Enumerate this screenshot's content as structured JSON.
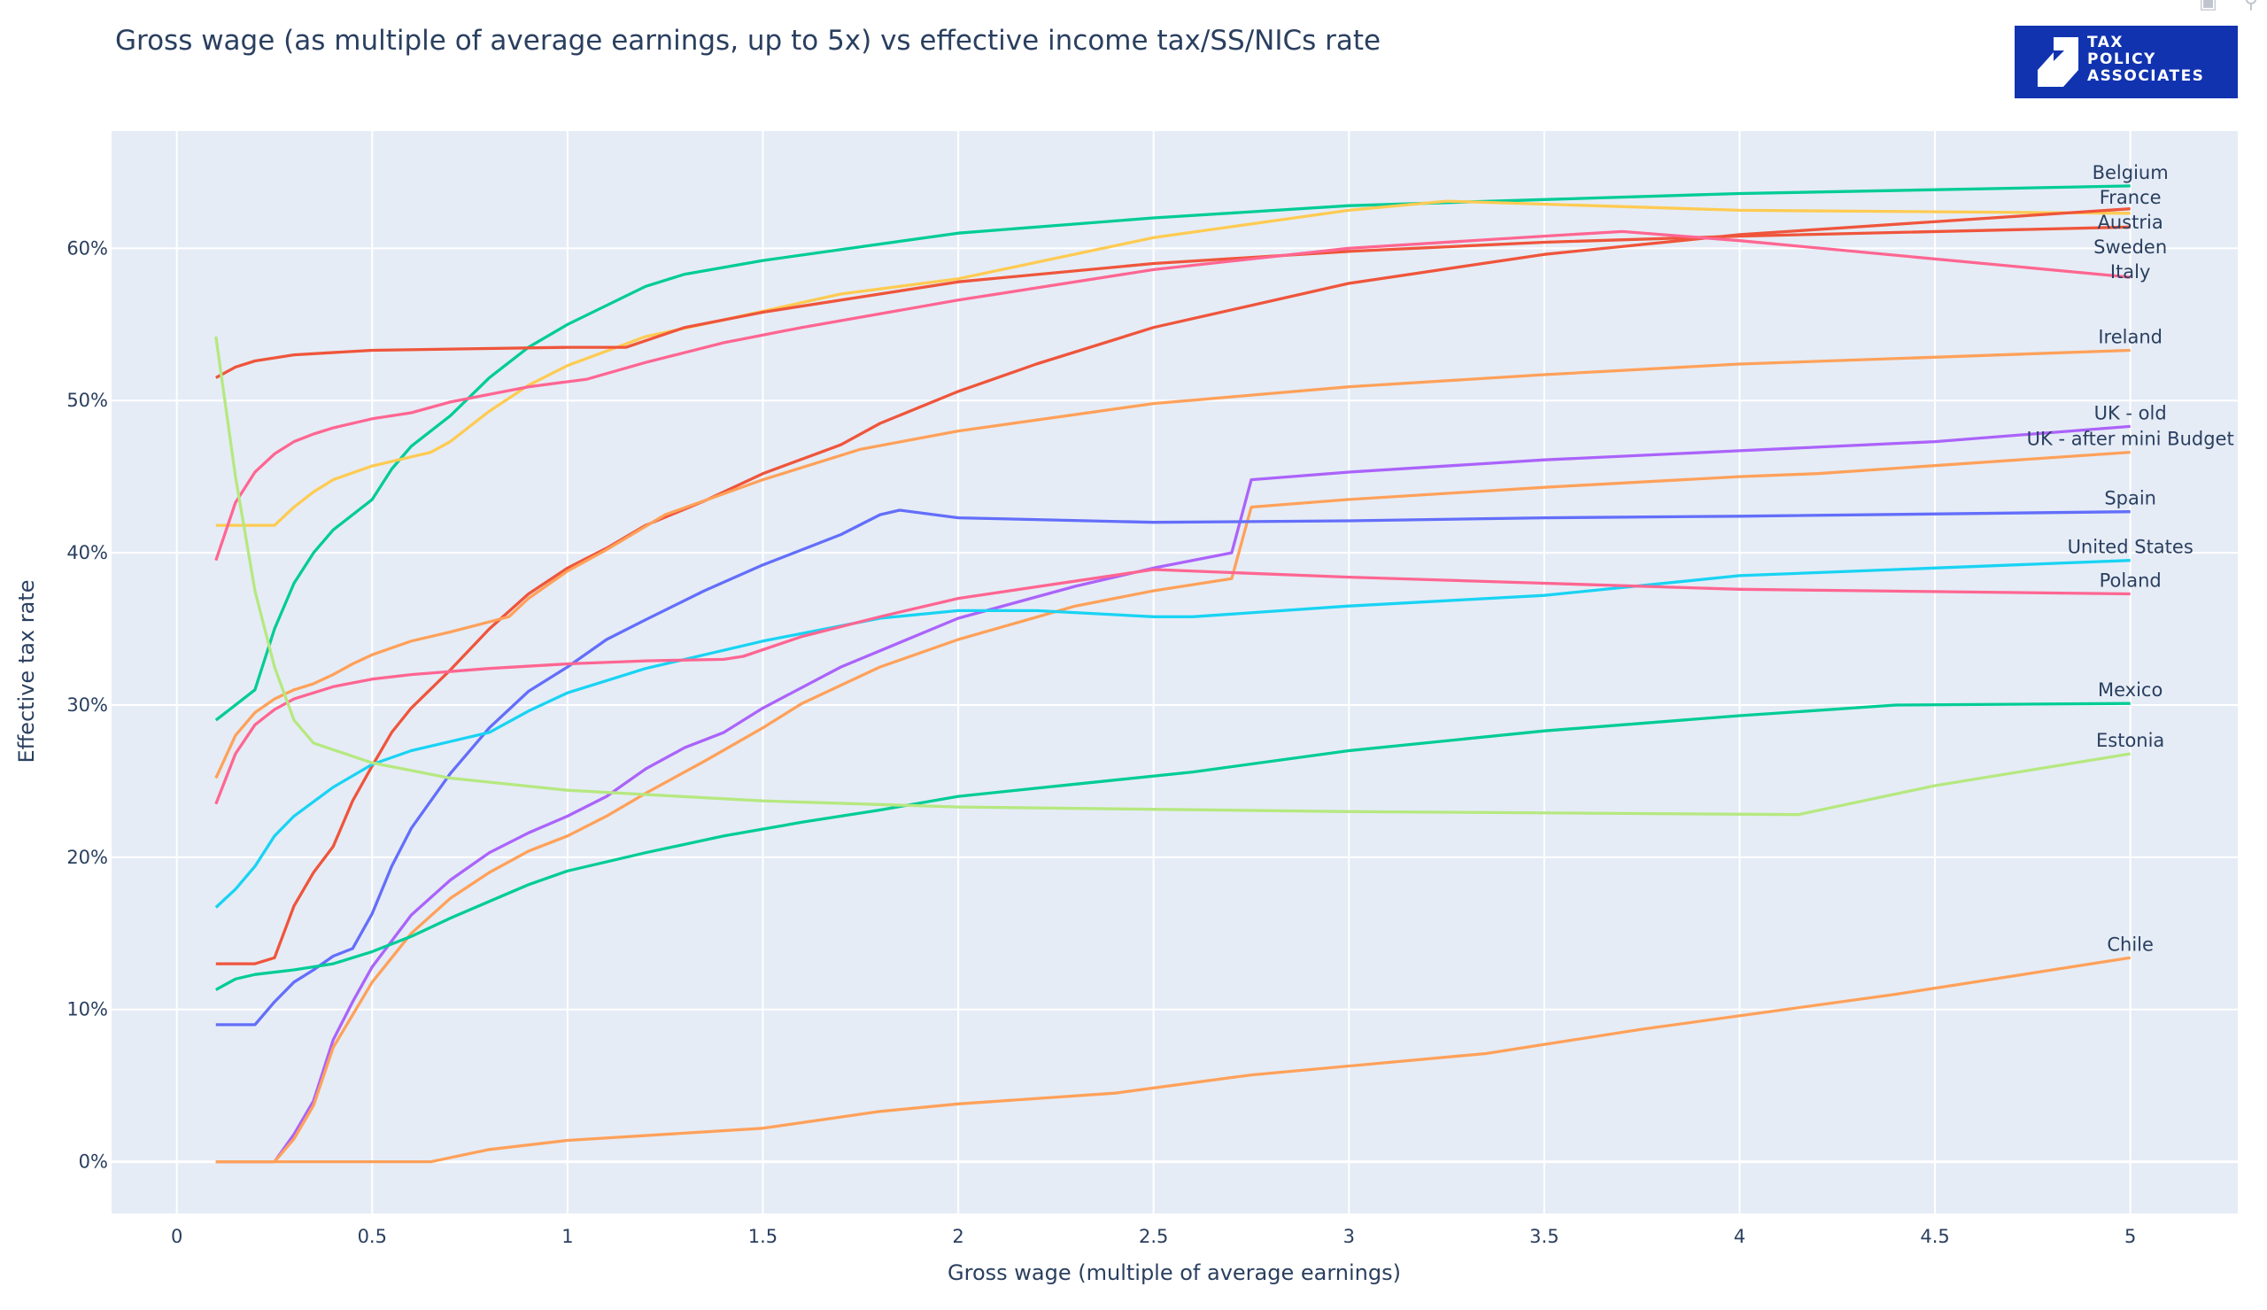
{
  "logo_text": [
    "TAX",
    "POLICY",
    "ASSOCIATES"
  ],
  "modebar": {
    "icons": [
      "camera-icon",
      "zoom-icon",
      "download-icon"
    ]
  },
  "chart_data": {
    "type": "line",
    "title": "Gross wage (as multiple of average earnings, up to 5x) vs effective income tax/SS/NICs rate",
    "xlabel": "Gross wage (multiple of average earnings)",
    "ylabel": "Effective tax rate",
    "xlim": [
      -0.167,
      5.275
    ],
    "ylim": [
      -3.4,
      67.7
    ],
    "xticks": [
      0,
      0.5,
      1,
      1.5,
      2,
      2.5,
      3,
      3.5,
      4,
      4.5,
      5
    ],
    "xtick_labels": [
      "0",
      "0.5",
      "1",
      "1.5",
      "2",
      "2.5",
      "3",
      "3.5",
      "4",
      "4.5",
      "5"
    ],
    "yticks": [
      0,
      10,
      20,
      30,
      40,
      50,
      60
    ],
    "ytick_labels": [
      "0%",
      "10%",
      "20%",
      "30%",
      "40%",
      "50%",
      "60%"
    ],
    "grid": true,
    "legend": "labels at line ends",
    "series": [
      {
        "name": "Belgium",
        "color": "#00cc96",
        "x": [
          0.1,
          0.2,
          0.25,
          0.3,
          0.35,
          0.4,
          0.5,
          0.55,
          0.6,
          0.7,
          0.8,
          0.9,
          1,
          1.2,
          1.3,
          1.5,
          2,
          2.5,
          3,
          3.5,
          4,
          5
        ],
        "y": [
          29,
          31,
          35,
          38,
          40,
          41.5,
          43.5,
          45.5,
          47,
          49,
          51.5,
          53.5,
          55,
          57.5,
          58.3,
          59.2,
          61,
          62,
          62.8,
          63.2,
          63.6,
          64.1
        ]
      },
      {
        "name": "Austria",
        "color": "#fecb52",
        "x": [
          0.1,
          0.25,
          0.3,
          0.35,
          0.4,
          0.5,
          0.6,
          0.65,
          0.7,
          0.8,
          0.9,
          1,
          1.2,
          1.4,
          1.7,
          2,
          2.5,
          3,
          3.25,
          3.5,
          4,
          5
        ],
        "y": [
          41.8,
          41.8,
          43,
          44,
          44.8,
          45.7,
          46.3,
          46.6,
          47.3,
          49.3,
          51,
          52.3,
          54.2,
          55.3,
          57,
          58,
          60.7,
          62.5,
          63.1,
          62.9,
          62.5,
          62.3
        ]
      },
      {
        "name": "France",
        "color": "#ef553b",
        "x": [
          0.1,
          0.2,
          0.25,
          0.3,
          0.35,
          0.4,
          0.45,
          0.5,
          0.55,
          0.6,
          0.7,
          0.8,
          0.9,
          1,
          1.1,
          1.2,
          1.35,
          1.5,
          1.7,
          1.8,
          2,
          2.2,
          2.5,
          3,
          3.5,
          4,
          5
        ],
        "y": [
          13,
          13,
          13.4,
          16.8,
          19,
          20.7,
          23.7,
          26,
          28.2,
          29.8,
          32.3,
          35,
          37.3,
          39,
          40.3,
          41.8,
          43.4,
          45.2,
          47.1,
          48.5,
          50.6,
          52.4,
          54.8,
          57.7,
          59.6,
          60.9,
          62.6
        ]
      },
      {
        "name": "Sweden",
        "color": "#ef553b",
        "x": [
          0.1,
          0.15,
          0.2,
          0.3,
          0.5,
          1,
          1.15,
          1.3,
          1.5,
          2,
          2.5,
          3,
          3.5,
          4,
          5
        ],
        "y": [
          51.5,
          52.2,
          52.6,
          53,
          53.3,
          53.5,
          53.5,
          54.8,
          55.8,
          57.8,
          59,
          59.8,
          60.4,
          60.8,
          61.4
        ]
      },
      {
        "name": "Italy",
        "color": "#ff6692",
        "x": [
          0.1,
          0.15,
          0.2,
          0.25,
          0.3,
          0.35,
          0.4,
          0.5,
          0.6,
          0.7,
          0.8,
          0.9,
          1.05,
          1.2,
          1.4,
          1.6,
          2,
          2.5,
          3,
          3.5,
          3.7,
          4,
          5
        ],
        "y": [
          39.5,
          43.3,
          45.3,
          46.5,
          47.3,
          47.8,
          48.2,
          48.8,
          49.2,
          49.9,
          50.4,
          50.9,
          51.4,
          52.5,
          53.8,
          54.8,
          56.6,
          58.6,
          60,
          60.8,
          61.1,
          60.5,
          58.1
        ]
      },
      {
        "name": "Ireland",
        "color": "#ffa15a",
        "x": [
          0.1,
          0.15,
          0.2,
          0.25,
          0.3,
          0.35,
          0.4,
          0.45,
          0.5,
          0.6,
          0.7,
          0.85,
          0.9,
          1,
          1.1,
          1.25,
          1.5,
          1.75,
          2,
          2.5,
          3,
          3.5,
          4,
          5
        ],
        "y": [
          25.2,
          28,
          29.5,
          30.4,
          31,
          31.4,
          32,
          32.7,
          33.3,
          34.2,
          34.8,
          35.8,
          37,
          38.8,
          40.2,
          42.5,
          44.8,
          46.8,
          48,
          49.8,
          50.9,
          51.7,
          52.4,
          53.3
        ]
      },
      {
        "name": "UK - old",
        "color": "#ab63fa",
        "x": [
          0.1,
          0.25,
          0.3,
          0.35,
          0.4,
          0.45,
          0.5,
          0.6,
          0.7,
          0.8,
          0.9,
          1,
          1.1,
          1.2,
          1.3,
          1.4,
          1.5,
          1.7,
          2,
          2.3,
          2.5,
          2.7,
          2.75,
          3,
          3.5,
          4,
          4.5,
          5
        ],
        "y": [
          0,
          0,
          1.8,
          4,
          8,
          10.5,
          12.8,
          16.2,
          18.5,
          20.3,
          21.6,
          22.7,
          24,
          25.8,
          27.2,
          28.2,
          29.8,
          32.5,
          35.7,
          37.8,
          39,
          40,
          44.8,
          45.3,
          46.1,
          46.7,
          47.3,
          48.3
        ]
      },
      {
        "name": "UK - after mini Budget",
        "color": "#ffa15a",
        "x": [
          0.1,
          0.25,
          0.3,
          0.35,
          0.4,
          0.5,
          0.6,
          0.7,
          0.8,
          0.9,
          1,
          1.1,
          1.2,
          1.35,
          1.5,
          1.6,
          1.8,
          2,
          2.3,
          2.5,
          2.7,
          2.75,
          3,
          3.5,
          4,
          4.2,
          5
        ],
        "y": [
          0,
          0,
          1.5,
          3.7,
          7.5,
          11.8,
          15,
          17.3,
          19,
          20.4,
          21.4,
          22.7,
          24.2,
          26.3,
          28.5,
          30.1,
          32.5,
          34.3,
          36.5,
          37.5,
          38.3,
          43,
          43.5,
          44.3,
          45,
          45.2,
          46.6
        ]
      },
      {
        "name": "Spain",
        "color": "#636efa",
        "x": [
          0.1,
          0.2,
          0.25,
          0.3,
          0.35,
          0.4,
          0.45,
          0.5,
          0.55,
          0.6,
          0.7,
          0.8,
          0.9,
          1,
          1.1,
          1.2,
          1.35,
          1.5,
          1.7,
          1.8,
          1.85,
          2,
          2.5,
          3,
          3.5,
          4,
          5
        ],
        "y": [
          9,
          9,
          10.5,
          11.8,
          12.6,
          13.5,
          14,
          16.3,
          19.4,
          21.9,
          25.5,
          28.5,
          30.9,
          32.5,
          34.3,
          35.6,
          37.5,
          39.2,
          41.2,
          42.5,
          42.8,
          42.3,
          42,
          42.1,
          42.3,
          42.4,
          42.7
        ]
      },
      {
        "name": "United States",
        "color": "#19d3f3",
        "x": [
          0.1,
          0.15,
          0.2,
          0.25,
          0.3,
          0.4,
          0.5,
          0.6,
          0.7,
          0.8,
          0.9,
          1,
          1.2,
          1.5,
          1.8,
          2,
          2.2,
          2.5,
          2.6,
          3,
          3.5,
          4,
          5
        ],
        "y": [
          16.7,
          17.9,
          19.4,
          21.4,
          22.7,
          24.6,
          26.1,
          27,
          27.6,
          28.2,
          29.6,
          30.8,
          32.4,
          34.2,
          35.7,
          36.2,
          36.2,
          35.8,
          35.8,
          36.5,
          37.2,
          38.5,
          39.5
        ]
      },
      {
        "name": "Poland",
        "color": "#ff6692",
        "x": [
          0.1,
          0.15,
          0.2,
          0.25,
          0.3,
          0.4,
          0.5,
          0.6,
          0.8,
          1,
          1.2,
          1.4,
          1.45,
          1.6,
          1.8,
          2,
          2.5,
          3,
          3.5,
          4,
          5
        ],
        "y": [
          23.5,
          26.8,
          28.7,
          29.7,
          30.4,
          31.2,
          31.7,
          32,
          32.4,
          32.7,
          32.9,
          33,
          33.2,
          34.5,
          35.8,
          37,
          38.9,
          38.4,
          38,
          37.6,
          37.3
        ]
      },
      {
        "name": "Mexico",
        "color": "#00cc96",
        "x": [
          0.1,
          0.15,
          0.2,
          0.3,
          0.4,
          0.5,
          0.6,
          0.7,
          0.8,
          0.9,
          1,
          1.2,
          1.4,
          1.6,
          1.8,
          2,
          2.3,
          2.6,
          3,
          3.5,
          4,
          4.4,
          5
        ],
        "y": [
          11.3,
          12,
          12.3,
          12.6,
          13,
          13.8,
          14.8,
          16,
          17.1,
          18.2,
          19.1,
          20.3,
          21.4,
          22.3,
          23.1,
          24,
          24.8,
          25.6,
          27,
          28.3,
          29.3,
          30,
          30.1
        ]
      },
      {
        "name": "Estonia",
        "color": "#b6e880",
        "x": [
          0.1,
          0.15,
          0.2,
          0.25,
          0.3,
          0.35,
          0.5,
          0.7,
          1,
          1.5,
          2,
          3,
          4.15,
          4.5,
          5
        ],
        "y": [
          54.2,
          45,
          37.5,
          32.5,
          29,
          27.5,
          26.2,
          25.2,
          24.4,
          23.7,
          23.3,
          23,
          22.8,
          24.7,
          26.8
        ]
      },
      {
        "name": "Chile",
        "color": "#ffa15a",
        "x": [
          0.1,
          0.65,
          0.8,
          1,
          1.5,
          1.8,
          2,
          2.4,
          2.75,
          3.35,
          3.75,
          4.4,
          5
        ],
        "y": [
          0,
          0,
          0.8,
          1.4,
          2.2,
          3.3,
          3.8,
          4.5,
          5.7,
          7.1,
          8.7,
          11,
          13.4
        ]
      }
    ]
  }
}
